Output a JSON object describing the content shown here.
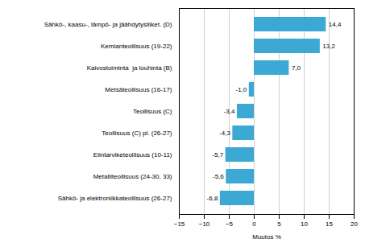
{
  "chart_data": {
    "type": "bar",
    "orientation": "horizontal",
    "categories": [
      "Sähkö-, kaasu-, lämpö- ja jäähdytysliiket. (D)",
      "Kemianteollisuus (19-22)",
      "Kaivostoiminta  ja louhinta (B)",
      "Metsäteollisuus (16-17)",
      "Teollisuus (C)",
      "Teollisuus (C) pl. (26-27)",
      "Elintarviketeollisuus (10-11)",
      "Metalliteollisuus (24-30, 33)",
      "Sähkö- ja elektroniikkateollisuus (26-27)"
    ],
    "values": [
      14.4,
      13.2,
      7.0,
      -1.0,
      -3.4,
      -4.3,
      -5.7,
      -5.6,
      -6.8
    ],
    "value_labels": [
      "14,4",
      "13,2",
      "7,0",
      "-1,0",
      "-3,4",
      "-4,3",
      "-5,7",
      "-5,6",
      "-6,8"
    ],
    "color": "#3CA8D4",
    "xlabel": "Muutos %",
    "xlim": [
      -15,
      20
    ],
    "xticks": [
      -15,
      -10,
      -5,
      0,
      5,
      10,
      15,
      20
    ],
    "grid": true,
    "data_labels": true
  }
}
